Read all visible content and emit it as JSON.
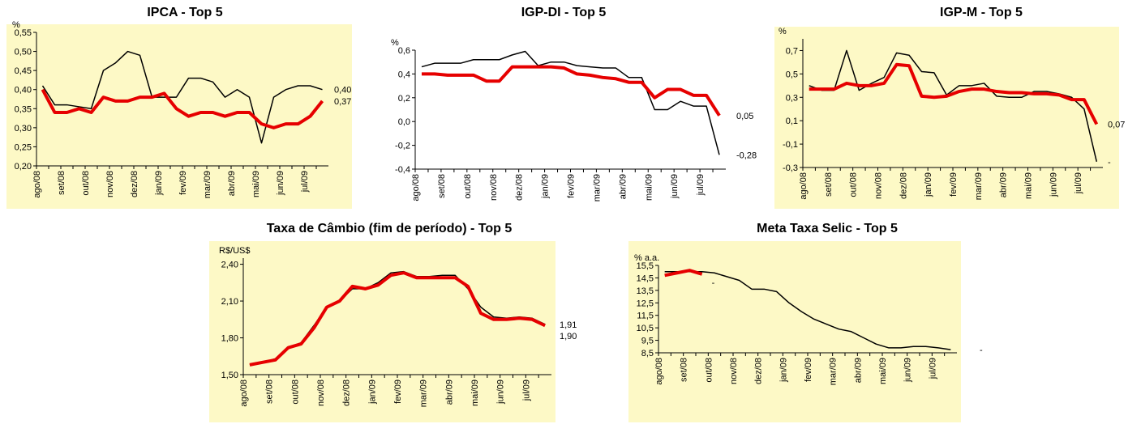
{
  "chart_data": [
    {
      "type": "line",
      "title": "IPCA - Top 5",
      "y_unit": "%",
      "background": "#fdf9c6",
      "categories": [
        "ago/08",
        null,
        "set/08",
        null,
        "out/08",
        null,
        "nov/08",
        null,
        "dez/08",
        null,
        "jan/09",
        null,
        "fev/09",
        null,
        "mar/09",
        null,
        "abr/09",
        null,
        "mai/09",
        null,
        "jun/09",
        null,
        "jul/09",
        null
      ],
      "ylim": [
        0.2,
        0.55
      ],
      "yticks": [
        {
          "value": 0.2,
          "label": "0,20"
        },
        {
          "value": 0.25,
          "label": "0,25"
        },
        {
          "value": 0.3,
          "label": "0,30"
        },
        {
          "value": 0.35,
          "label": "0,35"
        },
        {
          "value": 0.4,
          "label": "0,40"
        },
        {
          "value": 0.45,
          "label": "0,45"
        },
        {
          "value": 0.5,
          "label": "0,50"
        },
        {
          "value": 0.55,
          "label": "0,55"
        }
      ],
      "series": [
        {
          "color": "#000000",
          "values": [
            0.41,
            0.36,
            0.36,
            0.355,
            0.35,
            0.45,
            0.47,
            0.5,
            0.49,
            0.38,
            0.38,
            0.38,
            0.43,
            0.43,
            0.42,
            0.38,
            0.4,
            0.38,
            0.26,
            0.38,
            0.4,
            0.41,
            0.41,
            0.4
          ],
          "end_label": "0,40"
        },
        {
          "color": "#e60000",
          "values": [
            0.4,
            0.34,
            0.34,
            0.35,
            0.34,
            0.38,
            0.37,
            0.37,
            0.38,
            0.38,
            0.39,
            0.35,
            0.33,
            0.34,
            0.34,
            0.33,
            0.34,
            0.34,
            0.31,
            0.3,
            0.31,
            0.31,
            0.33,
            0.37
          ],
          "end_label": "0,37"
        }
      ]
    },
    {
      "type": "line",
      "title": "IGP-DI - Top 5",
      "y_unit": "%",
      "background": "#ffffff",
      "categories": [
        "ago/08",
        null,
        "set/08",
        null,
        "out/08",
        null,
        "nov/08",
        null,
        "dez/08",
        null,
        "jan/09",
        null,
        "fev/09",
        null,
        "mar/09",
        null,
        "abr/09",
        null,
        "mai/09",
        null,
        "jun/09",
        null,
        "jul/09",
        null
      ],
      "ylim": [
        -0.4,
        0.6
      ],
      "yticks": [
        {
          "value": -0.4,
          "label": "-0,4"
        },
        {
          "value": -0.2,
          "label": "-0,2"
        },
        {
          "value": 0,
          "label": "0,0"
        },
        {
          "value": 0.2,
          "label": "0,2"
        },
        {
          "value": 0.4,
          "label": "0,4"
        },
        {
          "value": 0.6,
          "label": "0,6"
        }
      ],
      "series": [
        {
          "color": "#000000",
          "values": [
            0.46,
            0.49,
            0.49,
            0.49,
            0.52,
            0.52,
            0.52,
            0.56,
            0.59,
            0.47,
            0.5,
            0.5,
            0.47,
            0.46,
            0.45,
            0.45,
            0.37,
            0.37,
            0.1,
            0.1,
            0.17,
            0.13,
            0.13,
            -0.28
          ],
          "end_label": "-0,28"
        },
        {
          "color": "#e60000",
          "values": [
            0.4,
            0.4,
            0.39,
            0.39,
            0.39,
            0.34,
            0.34,
            0.46,
            0.46,
            0.46,
            0.46,
            0.45,
            0.4,
            0.39,
            0.37,
            0.36,
            0.33,
            0.33,
            0.2,
            0.27,
            0.27,
            0.22,
            0.22,
            0.05
          ],
          "end_label": "0,05"
        }
      ]
    },
    {
      "type": "line",
      "title": "IGP-M - Top 5",
      "y_unit": "%",
      "background": "#fdf9c6",
      "categories": [
        "ago/08",
        null,
        "set/08",
        null,
        "out/08",
        null,
        "nov/08",
        null,
        "dez/08",
        null,
        "jan/09",
        null,
        "fev/09",
        null,
        "mar/09",
        null,
        "abr/09",
        null,
        "mai/09",
        null,
        "jun/09",
        null,
        "jul/09",
        null
      ],
      "ylim": [
        -0.3,
        0.8
      ],
      "yticks": [
        {
          "value": -0.3,
          "label": "-0,3"
        },
        {
          "value": -0.1,
          "label": "-0,1"
        },
        {
          "value": 0.1,
          "label": "0,1"
        },
        {
          "value": 0.3,
          "label": "0,3"
        },
        {
          "value": 0.5,
          "label": "0,5"
        },
        {
          "value": 0.7,
          "label": "0,7"
        }
      ],
      "series": [
        {
          "color": "#000000",
          "values": [
            0.4,
            0.36,
            0.36,
            0.7,
            0.36,
            0.42,
            0.47,
            0.68,
            0.66,
            0.52,
            0.51,
            0.32,
            0.4,
            0.4,
            0.42,
            0.31,
            0.3,
            0.3,
            0.35,
            0.35,
            0.33,
            0.3,
            0.2,
            -0.25
          ],
          "end_label": "-"
        },
        {
          "color": "#e60000",
          "values": [
            0.37,
            0.37,
            0.37,
            0.42,
            0.4,
            0.4,
            0.42,
            0.58,
            0.57,
            0.31,
            0.3,
            0.31,
            0.35,
            0.37,
            0.37,
            0.35,
            0.34,
            0.34,
            0.33,
            0.33,
            0.32,
            0.28,
            0.28,
            0.07
          ],
          "end_label": "0,07"
        }
      ]
    },
    {
      "type": "line",
      "title": "Taxa de Câmbio (fim de período) - Top 5",
      "y_unit": "R$/US$",
      "background": "#fdf9c6",
      "categories": [
        "ago/08",
        null,
        "set/08",
        null,
        "out/08",
        null,
        "nov/08",
        null,
        "dez/08",
        null,
        "jan/09",
        null,
        "fev/09",
        null,
        "mar/09",
        null,
        "abr/09",
        null,
        "mai/09",
        null,
        "jun/09",
        null,
        "jul/09",
        null
      ],
      "ylim": [
        1.5,
        2.45
      ],
      "yticks": [
        {
          "value": 1.5,
          "label": "1,50"
        },
        {
          "value": 1.8,
          "label": "1,80"
        },
        {
          "value": 2.1,
          "label": "2,10"
        },
        {
          "value": 2.4,
          "label": "2,40"
        }
      ],
      "series": [
        {
          "color": "#000000",
          "values": [
            1.58,
            1.6,
            1.63,
            1.72,
            1.76,
            1.9,
            2.05,
            2.1,
            2.2,
            2.2,
            2.25,
            2.33,
            2.34,
            2.3,
            2.3,
            2.31,
            2.31,
            2.2,
            2.05,
            1.97,
            1.96,
            1.97,
            1.96,
            1.91
          ],
          "end_label": "1,91"
        },
        {
          "color": "#e60000",
          "values": [
            1.58,
            1.6,
            1.62,
            1.72,
            1.75,
            1.88,
            2.05,
            2.1,
            2.22,
            2.2,
            2.23,
            2.31,
            2.33,
            2.29,
            2.29,
            2.29,
            2.29,
            2.22,
            2.0,
            1.95,
            1.95,
            1.96,
            1.95,
            1.9
          ],
          "end_label": "1,90"
        }
      ]
    },
    {
      "type": "line",
      "title": "Meta Taxa Selic - Top 5",
      "y_unit": "% a.a.",
      "background": "#fdf9c6",
      "categories": [
        "ago/08",
        null,
        "set/08",
        null,
        "out/08",
        null,
        "nov/08",
        null,
        "dez/08",
        null,
        "jan/09",
        null,
        "fev/09",
        null,
        "mar/09",
        null,
        "abr/09",
        null,
        "mai/09",
        null,
        "jun/09",
        null,
        "jul/09",
        null
      ],
      "ylim": [
        8.5,
        15.5
      ],
      "yticks": [
        {
          "value": 8.5,
          "label": "8,5"
        },
        {
          "value": 9.5,
          "label": "9,5"
        },
        {
          "value": 10.5,
          "label": "10,5"
        },
        {
          "value": 11.5,
          "label": "11,5"
        },
        {
          "value": 12.5,
          "label": "12,5"
        },
        {
          "value": 13.5,
          "label": "13,5"
        },
        {
          "value": 14.5,
          "label": "14,5"
        },
        {
          "value": 15.5,
          "label": "15,5"
        }
      ],
      "series": [
        {
          "color": "#000000",
          "values": [
            15.0,
            15.0,
            15.0,
            15.0,
            14.9,
            14.6,
            14.3,
            13.6,
            13.6,
            13.4,
            12.5,
            11.8,
            11.2,
            10.8,
            10.4,
            10.2,
            9.7,
            9.2,
            8.9,
            8.9,
            9.0,
            9.0,
            8.9,
            8.75
          ],
          "end_label": "-"
        },
        {
          "color": "#e60000",
          "values": [
            14.7,
            14.9,
            15.1,
            14.8,
            null,
            null,
            null,
            null,
            null,
            null,
            null,
            null,
            null,
            null,
            null,
            null,
            null,
            null,
            null,
            null,
            null,
            null,
            null,
            null
          ],
          "end_label": "-"
        }
      ]
    }
  ]
}
